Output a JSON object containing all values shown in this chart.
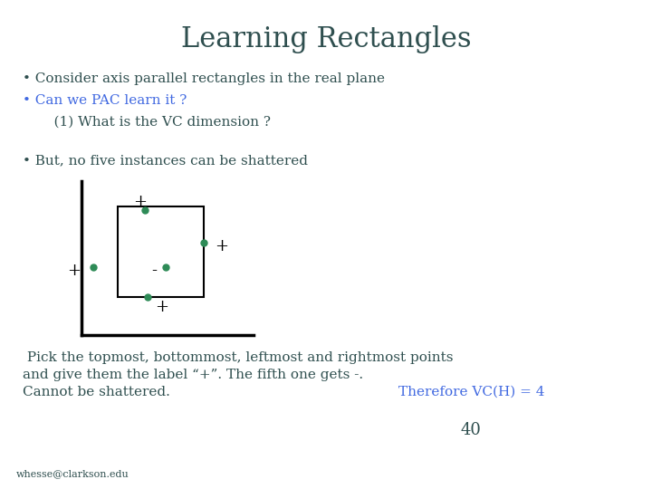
{
  "title": "Learning Rectangles",
  "title_color": "#2F4F4F",
  "title_fontsize": 22,
  "background_color": "#ffffff",
  "bullet1": "• Consider axis parallel rectangles in the real plane",
  "bullet1_color": "#2F4F4F",
  "bullet2": "• Can we PAC learn it ?",
  "bullet2_color": "#4169E1",
  "bullet3": "    (1) What is the VC dimension ?",
  "bullet3_color": "#2F4F4F",
  "bullet4": "• But, no five instances can be shattered",
  "bullet4_color": "#2F4F4F",
  "body_line1": " Pick the topmost, bottommost, leftmost and rightmost points",
  "body_line2": "and give them the label “+”. The fifth one gets -.",
  "body_line3": "Cannot be shattered.",
  "body_color": "#2F4F4F",
  "therefore_text": "Therefore VC(H) = 4",
  "therefore_color": "#4169E1",
  "number_text": "40",
  "number_color": "#2F4F4F",
  "footer_text": "whesse@clarkson.edu",
  "footer_color": "#2F4F4F",
  "dot_color": "#2E8B57",
  "fontsize_body": 11,
  "fontsize_bullet": 11
}
